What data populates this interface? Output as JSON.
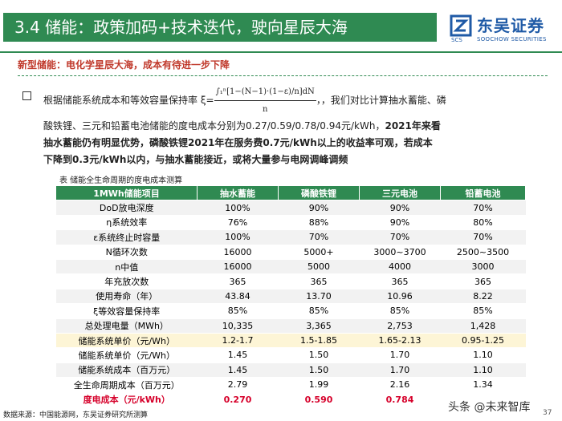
{
  "header": {
    "title": "3.4 储能：政策加码+技术迭代，驶向星辰大海",
    "logo_cn": "东吴证券",
    "logo_en": "SOOCHOW SECURITIES"
  },
  "subtitle": "新型储能：电化学星辰大海，成本有待进一步下降",
  "paragraph": {
    "line1_a": "根据储能系统成本和等效容量保持率 ξ=",
    "formula_num": "∫₁ⁿ[1−(N−1)·(1−ε)/n]dN",
    "formula_den": "n",
    "line1_b": "，，我们对比计算抽水蓄能、磷",
    "line2_a": "酸铁锂、三元和铅蓄电池储能的度电成本分别为0.27/0.59/0.78/0.94元/kWh，",
    "line2_b": "2021年来看",
    "line3": "抽水蓄能仍有明显优势，磷酸铁锂2021年在服务费0.7元/kWh以上的收益率可观，若成本",
    "line4": "下降到0.3元/kWh以内，与抽水蓄能接近，或将大量参与电网调峰调频"
  },
  "table": {
    "caption": "表  储能全生命周期的度电成本测算",
    "headers": [
      "1MWh储能项目",
      "抽水蓄能",
      "磷酸铁锂",
      "三元电池",
      "铅蓄电池"
    ],
    "rows": [
      [
        "DoD放电深度",
        "100%",
        "90%",
        "90%",
        "70%"
      ],
      [
        "η系统效率",
        "76%",
        "88%",
        "90%",
        "80%"
      ],
      [
        "ε系统终止时容量",
        "100%",
        "70%",
        "70%",
        "70%"
      ],
      [
        "N循环次数",
        "16000",
        "5000+",
        "3000~3700",
        "2500~3500"
      ],
      [
        "n中值",
        "16000",
        "5000",
        "4000",
        "3000"
      ],
      [
        "年充放次数",
        "365",
        "365",
        "365",
        "365"
      ],
      [
        "使用寿命（年）",
        "43.84",
        "13.70",
        "10.96",
        "8.22"
      ],
      [
        "ξ等效容量保持率",
        "85%",
        "85%",
        "85%",
        "85%"
      ],
      [
        "总处理电量（MWh）",
        "10,335",
        "3,365",
        "2,753",
        "1,428"
      ],
      [
        "储能系统单价（元/Wh）",
        "1.2-1.7",
        "1.5-1.85",
        "1.65-2.13",
        "0.95-1.25"
      ],
      [
        "储能系统单价（元/Wh）",
        "1.45",
        "1.50",
        "1.70",
        "1.10"
      ],
      [
        "储能系统成本（百万元）",
        "1.45",
        "1.50",
        "1.70",
        "1.10"
      ],
      [
        "全生命周期成本（百万元）",
        "2.79",
        "1.99",
        "2.16",
        "1.34"
      ],
      [
        "度电成本（元/kWh）",
        "0.270",
        "0.590",
        "0.784",
        ""
      ]
    ]
  },
  "footer": {
    "source": "数据来源：中国能源网，东吴证券研究所测算",
    "watermark": "头条 @未来智库",
    "page": "37"
  },
  "colors": {
    "accent": "#2f8a52",
    "highlight": "#d6002a",
    "brand": "#1f5aa6"
  }
}
